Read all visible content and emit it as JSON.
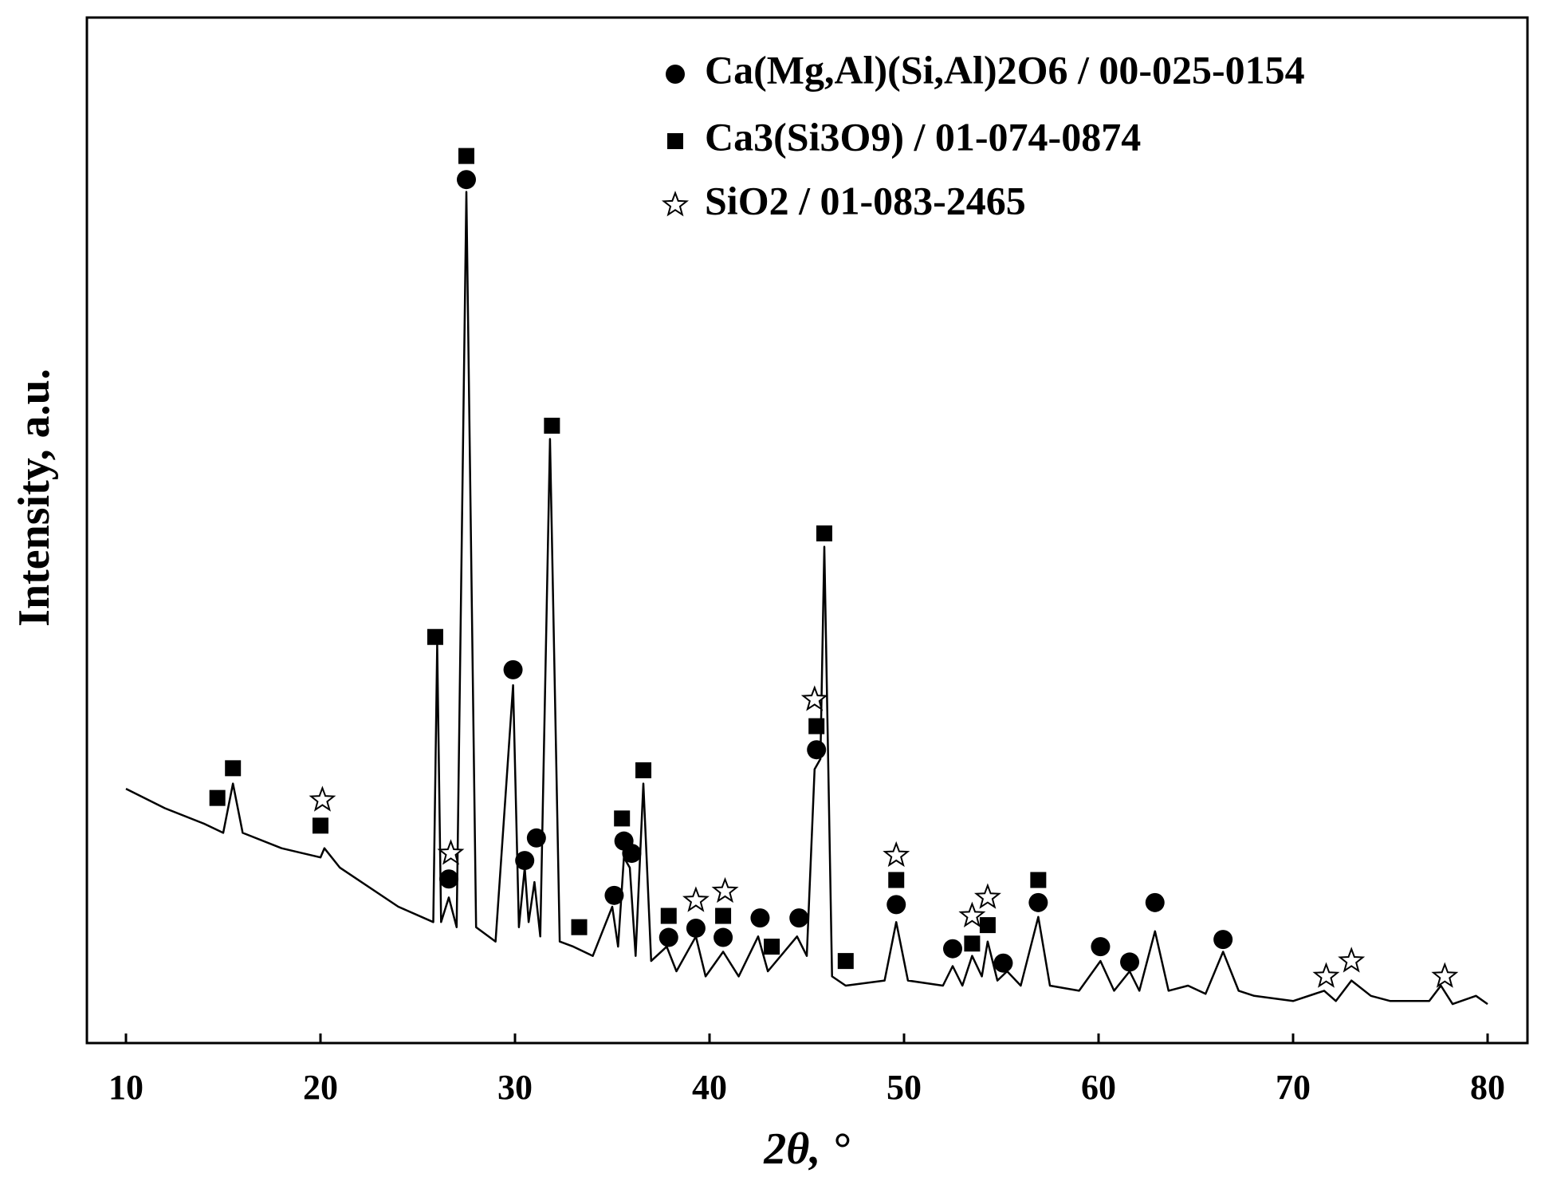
{
  "chart_data": {
    "type": "line",
    "xlabel": "2θ, °",
    "ylabel": "Intensity, a.u.",
    "xlim": [
      10,
      80
    ],
    "ylim": [
      0,
      100
    ],
    "xticks": [
      10,
      20,
      30,
      40,
      50,
      60,
      70,
      80
    ],
    "legend": "upper right",
    "series": [
      {
        "color": "#000000",
        "x": [
          10,
          12,
          14,
          15,
          15.5,
          16,
          18,
          20,
          20.2,
          21,
          24,
          25.8,
          26,
          26.2,
          26.6,
          27,
          27.5,
          28,
          29,
          29.9,
          30.2,
          30.5,
          30.7,
          31,
          31.3,
          31.8,
          32.3,
          33,
          34,
          35,
          35.3,
          35.6,
          35.9,
          36.2,
          36.6,
          37,
          37.8,
          38.3,
          39.3,
          39.8,
          40.7,
          41.5,
          42.5,
          43,
          44.5,
          45,
          45.4,
          45.7,
          45.9,
          46.3,
          47,
          49,
          49.6,
          50.2,
          52,
          52.5,
          53,
          53.5,
          54,
          54.3,
          54.8,
          55.3,
          56,
          56.9,
          57.5,
          59,
          60.1,
          60.8,
          61.6,
          62.1,
          62.9,
          63.6,
          64.6,
          65.5,
          66.4,
          67.2,
          68,
          70,
          71.6,
          72.2,
          73,
          74,
          75,
          77,
          77.6,
          78.2,
          79.4,
          80
        ],
        "values": [
          24.8,
          22.9,
          21.4,
          20.5,
          25.3,
          20.5,
          19,
          18.1,
          19,
          17.1,
          13.3,
          11.8,
          38.8,
          11.8,
          14.2,
          11.3,
          83,
          11.3,
          9.9,
          34.9,
          11.3,
          17.1,
          11.8,
          15.7,
          10.4,
          58.9,
          9.9,
          9.4,
          8.5,
          13.3,
          9.4,
          18.1,
          17.1,
          8.5,
          25.3,
          8,
          9.4,
          7,
          10.4,
          6.5,
          8.9,
          6.5,
          10.4,
          7,
          10.4,
          8.5,
          26.7,
          27.7,
          48.4,
          6.5,
          5.6,
          6.1,
          11.8,
          6.1,
          5.6,
          7.5,
          5.6,
          8.5,
          6.5,
          9.9,
          6.1,
          7,
          5.6,
          12.3,
          5.6,
          5.1,
          8,
          5.1,
          7,
          5.1,
          10.9,
          5.1,
          5.6,
          4.8,
          8.9,
          5.1,
          4.6,
          4.1,
          5.1,
          4.1,
          6.1,
          4.6,
          4.1,
          4.1,
          5.6,
          3.8,
          4.6,
          3.8
        ]
      }
    ],
    "phases": [
      {
        "name": "Ca(Mg,Al)(Si,Al)2O6 / 00-025-0154",
        "marker": "circle",
        "x": [
          26.6,
          27.5,
          29.9,
          30.5,
          31.1,
          35.1,
          35.6,
          36.0,
          37.9,
          39.3,
          40.7,
          42.6,
          44.6,
          45.5,
          49.6,
          52.5,
          55.1,
          56.9,
          60.1,
          61.6,
          62.9,
          66.4
        ],
        "y": [
          16.0,
          84.2,
          36.4,
          17.8,
          20.0,
          14.4,
          19.7,
          18.5,
          10.3,
          11.2,
          10.3,
          12.2,
          12.2,
          28.6,
          13.5,
          9.2,
          7.8,
          13.7,
          9.4,
          7.9,
          13.7,
          10.1
        ]
      },
      {
        "name": "Ca3(Si3O9) / 01-074-0874",
        "marker": "square",
        "x": [
          14.7,
          15.5,
          20.0,
          25.9,
          27.5,
          31.9,
          33.3,
          35.5,
          36.6,
          37.9,
          40.7,
          43.2,
          45.5,
          45.9,
          47.0,
          49.6,
          53.5,
          54.3,
          56.9
        ],
        "y": [
          23.9,
          26.8,
          21.2,
          39.6,
          86.5,
          60.2,
          11.3,
          21.9,
          26.6,
          12.4,
          12.4,
          9.4,
          30.9,
          49.7,
          8.0,
          15.9,
          9.7,
          11.5,
          15.9
        ]
      },
      {
        "name": "SiO2 / 01-083-2465",
        "marker": "star",
        "x": [
          20.1,
          26.7,
          39.3,
          40.8,
          45.4,
          49.6,
          53.5,
          54.3,
          71.7,
          73.0,
          77.8
        ],
        "y": [
          23.7,
          18.5,
          13.9,
          14.8,
          33.5,
          18.3,
          12.4,
          14.2,
          6.5,
          8.0,
          6.5
        ]
      }
    ]
  }
}
